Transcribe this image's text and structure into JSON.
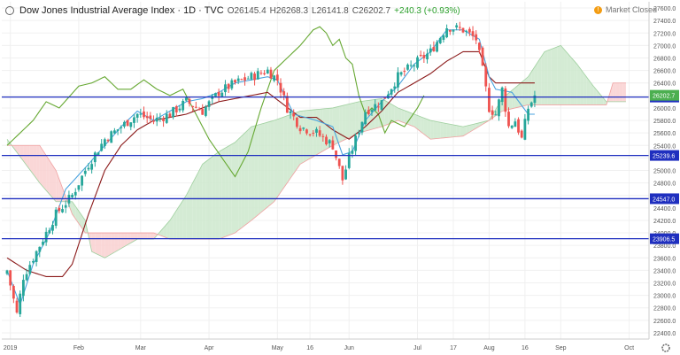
{
  "header": {
    "title": "Dow Jones Industrial Average Index · 1D · TVC",
    "open": "O26145.4",
    "high": "H26268.3",
    "low": "L26141.8",
    "close": "C26202.7",
    "change": "+240.3 (+0.93%)"
  },
  "market_status": "Market Closed",
  "colors": {
    "up": "#26a69a",
    "down": "#ef5350",
    "conversion": "#4aa3df",
    "base": "#8b1a1a",
    "lagging": "#66a832",
    "cloud_bull": "#cce8cc",
    "cloud_bear": "#f9d0d0",
    "hline": "#1f2fbf"
  },
  "chart_data": {
    "type": "candlestick",
    "ylim": [
      22300,
      27700
    ],
    "y_ticks": [
      22400,
      22600,
      22800,
      23000,
      23200,
      23400,
      23600,
      23800,
      24000,
      24200,
      24400,
      24600,
      24800,
      25000,
      25200,
      25400,
      25600,
      25800,
      26000,
      26200,
      26400,
      26600,
      26800,
      27000,
      27200,
      27400,
      27600
    ],
    "x_ticks": [
      {
        "label": "2019",
        "i": 1
      },
      {
        "label": "Feb",
        "i": 22
      },
      {
        "label": "Mar",
        "i": 41
      },
      {
        "label": "Apr",
        "i": 62
      },
      {
        "label": "May",
        "i": 83
      },
      {
        "label": "16",
        "i": 93
      },
      {
        "label": "Jun",
        "i": 105
      },
      {
        "label": "Jul",
        "i": 126
      },
      {
        "label": "17",
        "i": 137
      },
      {
        "label": "Aug",
        "i": 148
      },
      {
        "label": "16",
        "i": 159
      },
      {
        "label": "Sep",
        "i": 170
      },
      {
        "label": "Oct",
        "i": 191
      }
    ],
    "n_slots": 196,
    "horizontal_levels": [
      {
        "value": 26174.9,
        "label": "26174.9"
      },
      {
        "value": 25239.6,
        "label": "25239.6"
      },
      {
        "value": 24547.0,
        "label": "24547.0"
      },
      {
        "value": 23906.5,
        "label": "23906.5"
      }
    ],
    "last_price": {
      "value": 26202.7,
      "label": "26202.7"
    },
    "candle_anchors": [
      [
        0,
        23400
      ],
      [
        3,
        22700
      ],
      [
        5,
        23300
      ],
      [
        10,
        23800
      ],
      [
        15,
        24300
      ],
      [
        20,
        24600
      ],
      [
        25,
        25100
      ],
      [
        30,
        25500
      ],
      [
        35,
        25700
      ],
      [
        40,
        25900
      ],
      [
        45,
        25800
      ],
      [
        50,
        25900
      ],
      [
        55,
        26100
      ],
      [
        60,
        25950
      ],
      [
        65,
        26250
      ],
      [
        70,
        26400
      ],
      [
        75,
        26500
      ],
      [
        80,
        26600
      ],
      [
        83,
        26450
      ],
      [
        86,
        26000
      ],
      [
        90,
        25700
      ],
      [
        95,
        25600
      ],
      [
        100,
        25400
      ],
      [
        103,
        24850
      ],
      [
        105,
        25200
      ],
      [
        110,
        25950
      ],
      [
        115,
        26100
      ],
      [
        120,
        26500
      ],
      [
        125,
        26700
      ],
      [
        130,
        26900
      ],
      [
        135,
        27300
      ],
      [
        140,
        27250
      ],
      [
        144,
        27100
      ],
      [
        146,
        26600
      ],
      [
        148,
        26000
      ],
      [
        150,
        25900
      ],
      [
        152,
        26300
      ],
      [
        154,
        25700
      ],
      [
        156,
        25800
      ],
      [
        158,
        25500
      ],
      [
        160,
        26000
      ],
      [
        162,
        26200
      ]
    ],
    "cloud_anchors": [
      [
        0,
        25500,
        25400
      ],
      [
        10,
        24800,
        25400
      ],
      [
        15,
        24500,
        25000
      ],
      [
        20,
        24500,
        24300
      ],
      [
        24,
        24200,
        24000
      ],
      [
        26,
        23700,
        24000
      ],
      [
        30,
        23600,
        24000
      ],
      [
        40,
        23900,
        24000
      ],
      [
        45,
        23900,
        24000
      ],
      [
        50,
        24200,
        23900
      ],
      [
        55,
        24600,
        23900
      ],
      [
        60,
        25100,
        23900
      ],
      [
        65,
        25300,
        23900
      ],
      [
        70,
        25450,
        24000
      ],
      [
        75,
        25700,
        24200
      ],
      [
        82,
        25800,
        24500
      ],
      [
        90,
        25950,
        25100
      ],
      [
        100,
        26000,
        25400
      ],
      [
        108,
        26100,
        25600
      ],
      [
        115,
        26150,
        25700
      ],
      [
        120,
        26000,
        25800
      ],
      [
        125,
        25900,
        25700
      ],
      [
        130,
        25800,
        25500
      ],
      [
        140,
        25700,
        25550
      ],
      [
        148,
        25800,
        25800
      ],
      [
        152,
        26150,
        25950
      ],
      [
        160,
        26500,
        26050
      ],
      [
        165,
        26900,
        26050
      ],
      [
        170,
        27000,
        26050
      ],
      [
        175,
        26700,
        26050
      ],
      [
        180,
        26350,
        26050
      ],
      [
        184,
        26100,
        26050
      ],
      [
        186,
        26100,
        26400
      ],
      [
        190,
        26100,
        26400
      ]
    ],
    "conversion_anchors": [
      [
        0,
        23400
      ],
      [
        4,
        22850
      ],
      [
        8,
        23500
      ],
      [
        13,
        24000
      ],
      [
        18,
        24700
      ],
      [
        25,
        25100
      ],
      [
        30,
        25400
      ],
      [
        35,
        25700
      ],
      [
        40,
        25950
      ],
      [
        45,
        25800
      ],
      [
        50,
        25950
      ],
      [
        55,
        26100
      ],
      [
        60,
        26150
      ],
      [
        65,
        26250
      ],
      [
        70,
        26400
      ],
      [
        75,
        26450
      ],
      [
        80,
        26500
      ],
      [
        83,
        26450
      ],
      [
        88,
        25900
      ],
      [
        95,
        25800
      ],
      [
        100,
        25700
      ],
      [
        103,
        25250
      ],
      [
        106,
        25300
      ],
      [
        110,
        25800
      ],
      [
        115,
        26100
      ],
      [
        120,
        26350
      ],
      [
        125,
        26700
      ],
      [
        130,
        26900
      ],
      [
        135,
        27250
      ],
      [
        140,
        27250
      ],
      [
        145,
        27100
      ],
      [
        148,
        26500
      ],
      [
        150,
        26300
      ],
      [
        155,
        26250
      ],
      [
        160,
        25900
      ],
      [
        162,
        25900
      ]
    ],
    "base_anchors": [
      [
        0,
        23600
      ],
      [
        6,
        23400
      ],
      [
        12,
        23300
      ],
      [
        17,
        23300
      ],
      [
        20,
        23500
      ],
      [
        25,
        24300
      ],
      [
        30,
        25000
      ],
      [
        35,
        25400
      ],
      [
        40,
        25650
      ],
      [
        45,
        25800
      ],
      [
        50,
        25850
      ],
      [
        55,
        25900
      ],
      [
        60,
        26000
      ],
      [
        65,
        26100
      ],
      [
        70,
        26150
      ],
      [
        75,
        26200
      ],
      [
        80,
        26250
      ],
      [
        85,
        26050
      ],
      [
        90,
        25850
      ],
      [
        95,
        25850
      ],
      [
        100,
        25650
      ],
      [
        105,
        25500
      ],
      [
        110,
        25700
      ],
      [
        115,
        25950
      ],
      [
        120,
        26250
      ],
      [
        125,
        26400
      ],
      [
        130,
        26550
      ],
      [
        135,
        26750
      ],
      [
        140,
        26900
      ],
      [
        145,
        26900
      ],
      [
        148,
        26500
      ],
      [
        150,
        26400
      ],
      [
        155,
        26400
      ],
      [
        160,
        26400
      ],
      [
        162,
        26400
      ]
    ],
    "lagging_anchors": [
      [
        0,
        25400
      ],
      [
        4,
        25600
      ],
      [
        8,
        25800
      ],
      [
        12,
        26100
      ],
      [
        16,
        26000
      ],
      [
        22,
        26350
      ],
      [
        26,
        26400
      ],
      [
        30,
        26500
      ],
      [
        34,
        26300
      ],
      [
        38,
        26300
      ],
      [
        42,
        26450
      ],
      [
        46,
        26300
      ],
      [
        50,
        26200
      ],
      [
        54,
        26300
      ],
      [
        58,
        25900
      ],
      [
        60,
        25700
      ],
      [
        62,
        25500
      ],
      [
        66,
        25200
      ],
      [
        70,
        24900
      ],
      [
        74,
        25300
      ],
      [
        78,
        26000
      ],
      [
        82,
        26600
      ],
      [
        86,
        26800
      ],
      [
        90,
        27000
      ],
      [
        94,
        27250
      ],
      [
        96,
        27300
      ],
      [
        98,
        27200
      ],
      [
        100,
        27000
      ],
      [
        102,
        27100
      ],
      [
        104,
        26800
      ],
      [
        106,
        26700
      ],
      [
        108,
        26200
      ],
      [
        110,
        25900
      ],
      [
        112,
        26000
      ],
      [
        114,
        25900
      ],
      [
        116,
        25600
      ],
      [
        118,
        25800
      ],
      [
        122,
        25700
      ],
      [
        126,
        26000
      ],
      [
        128,
        26200
      ]
    ]
  }
}
